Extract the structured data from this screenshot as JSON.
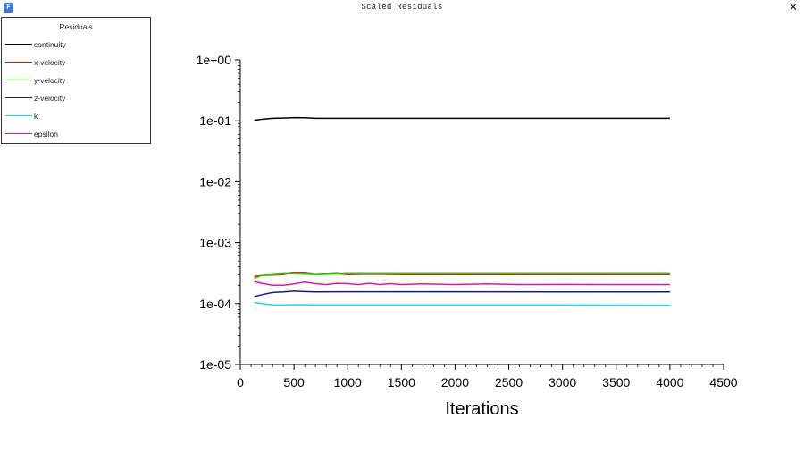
{
  "window": {
    "title": "Scaled Residuals",
    "icon": "app-icon",
    "close_glyph": "✕"
  },
  "legend": {
    "title": "Residuals"
  },
  "chart_data": {
    "type": "line",
    "title": "",
    "xlabel": "Iterations",
    "ylabel": "",
    "xlim": [
      0,
      4500
    ],
    "ylim": [
      1e-05,
      1
    ],
    "yscale": "log",
    "x_ticks": [
      "0",
      "500",
      "1000",
      "1500",
      "2000",
      "2500",
      "3000",
      "3500",
      "4000",
      "4500"
    ],
    "y_ticks": [
      "1e+00",
      "1e-01",
      "1e-02",
      "1e-03",
      "1e-04",
      "1e-05"
    ],
    "grid": false,
    "legend_position": "top-left",
    "series": [
      {
        "name": "continuity",
        "color": "#000000",
        "x": [
          130,
          200,
          300,
          400,
          500,
          600,
          700,
          1000,
          2000,
          3000,
          3500,
          4000
        ],
        "y": [
          0.102,
          0.106,
          0.11,
          0.111,
          0.113,
          0.112,
          0.11,
          0.11,
          0.11,
          0.11,
          0.11,
          0.11
        ]
      },
      {
        "name": "x-velocity",
        "color": "#e8141b",
        "x": [
          130,
          200,
          300,
          400,
          500,
          600,
          700,
          800,
          900,
          1000,
          1200,
          1500,
          2000,
          2500,
          3000,
          3500,
          4000
        ],
        "y": [
          0.00028,
          0.00029,
          0.000295,
          0.0003,
          0.00032,
          0.000315,
          0.0003,
          0.000305,
          0.00031,
          0.0003,
          0.000305,
          0.0003,
          0.0003,
          0.0003,
          0.0003,
          0.0003,
          0.0003
        ]
      },
      {
        "name": "y-velocity",
        "color": "#1fd400",
        "x": [
          130,
          200,
          300,
          400,
          500,
          700,
          1000,
          1500,
          2000,
          2500,
          3000,
          3500,
          4000
        ],
        "y": [
          0.00026,
          0.00029,
          0.0003,
          0.00031,
          0.00031,
          0.0003,
          0.00031,
          0.00031,
          0.00031,
          0.00031,
          0.00031,
          0.00031,
          0.00031
        ]
      },
      {
        "name": "z-velocity",
        "color": "#0b1aa8",
        "x": [
          130,
          200,
          300,
          400,
          500,
          600,
          700,
          1000,
          2000,
          3000,
          4000
        ],
        "y": [
          0.00013,
          0.00014,
          0.000152,
          0.000155,
          0.00016,
          0.000157,
          0.000155,
          0.000156,
          0.000156,
          0.000155,
          0.000155
        ]
      },
      {
        "name": "k",
        "color": "#1fdadc",
        "x": [
          130,
          200,
          300,
          400,
          500,
          700,
          1000,
          2000,
          3000,
          4000
        ],
        "y": [
          0.000105,
          0.0001,
          9.5e-05,
          9.5e-05,
          9.6e-05,
          9.5e-05,
          9.5e-05,
          9.5e-05,
          9.5e-05,
          9.4e-05
        ]
      },
      {
        "name": "epsilon",
        "color": "#e01aa0",
        "x": [
          130,
          200,
          300,
          400,
          500,
          600,
          700,
          800,
          900,
          1000,
          1100,
          1200,
          1300,
          1400,
          1500,
          1700,
          2000,
          2300,
          2600,
          3000,
          3500,
          4000
        ],
        "y": [
          0.00023,
          0.000215,
          0.0002,
          0.0002,
          0.00021,
          0.000225,
          0.000212,
          0.000205,
          0.000215,
          0.000212,
          0.000205,
          0.000215,
          0.000205,
          0.000212,
          0.000205,
          0.00021,
          0.000205,
          0.00021,
          0.000205,
          0.000206,
          0.000205,
          0.000205
        ]
      }
    ]
  }
}
